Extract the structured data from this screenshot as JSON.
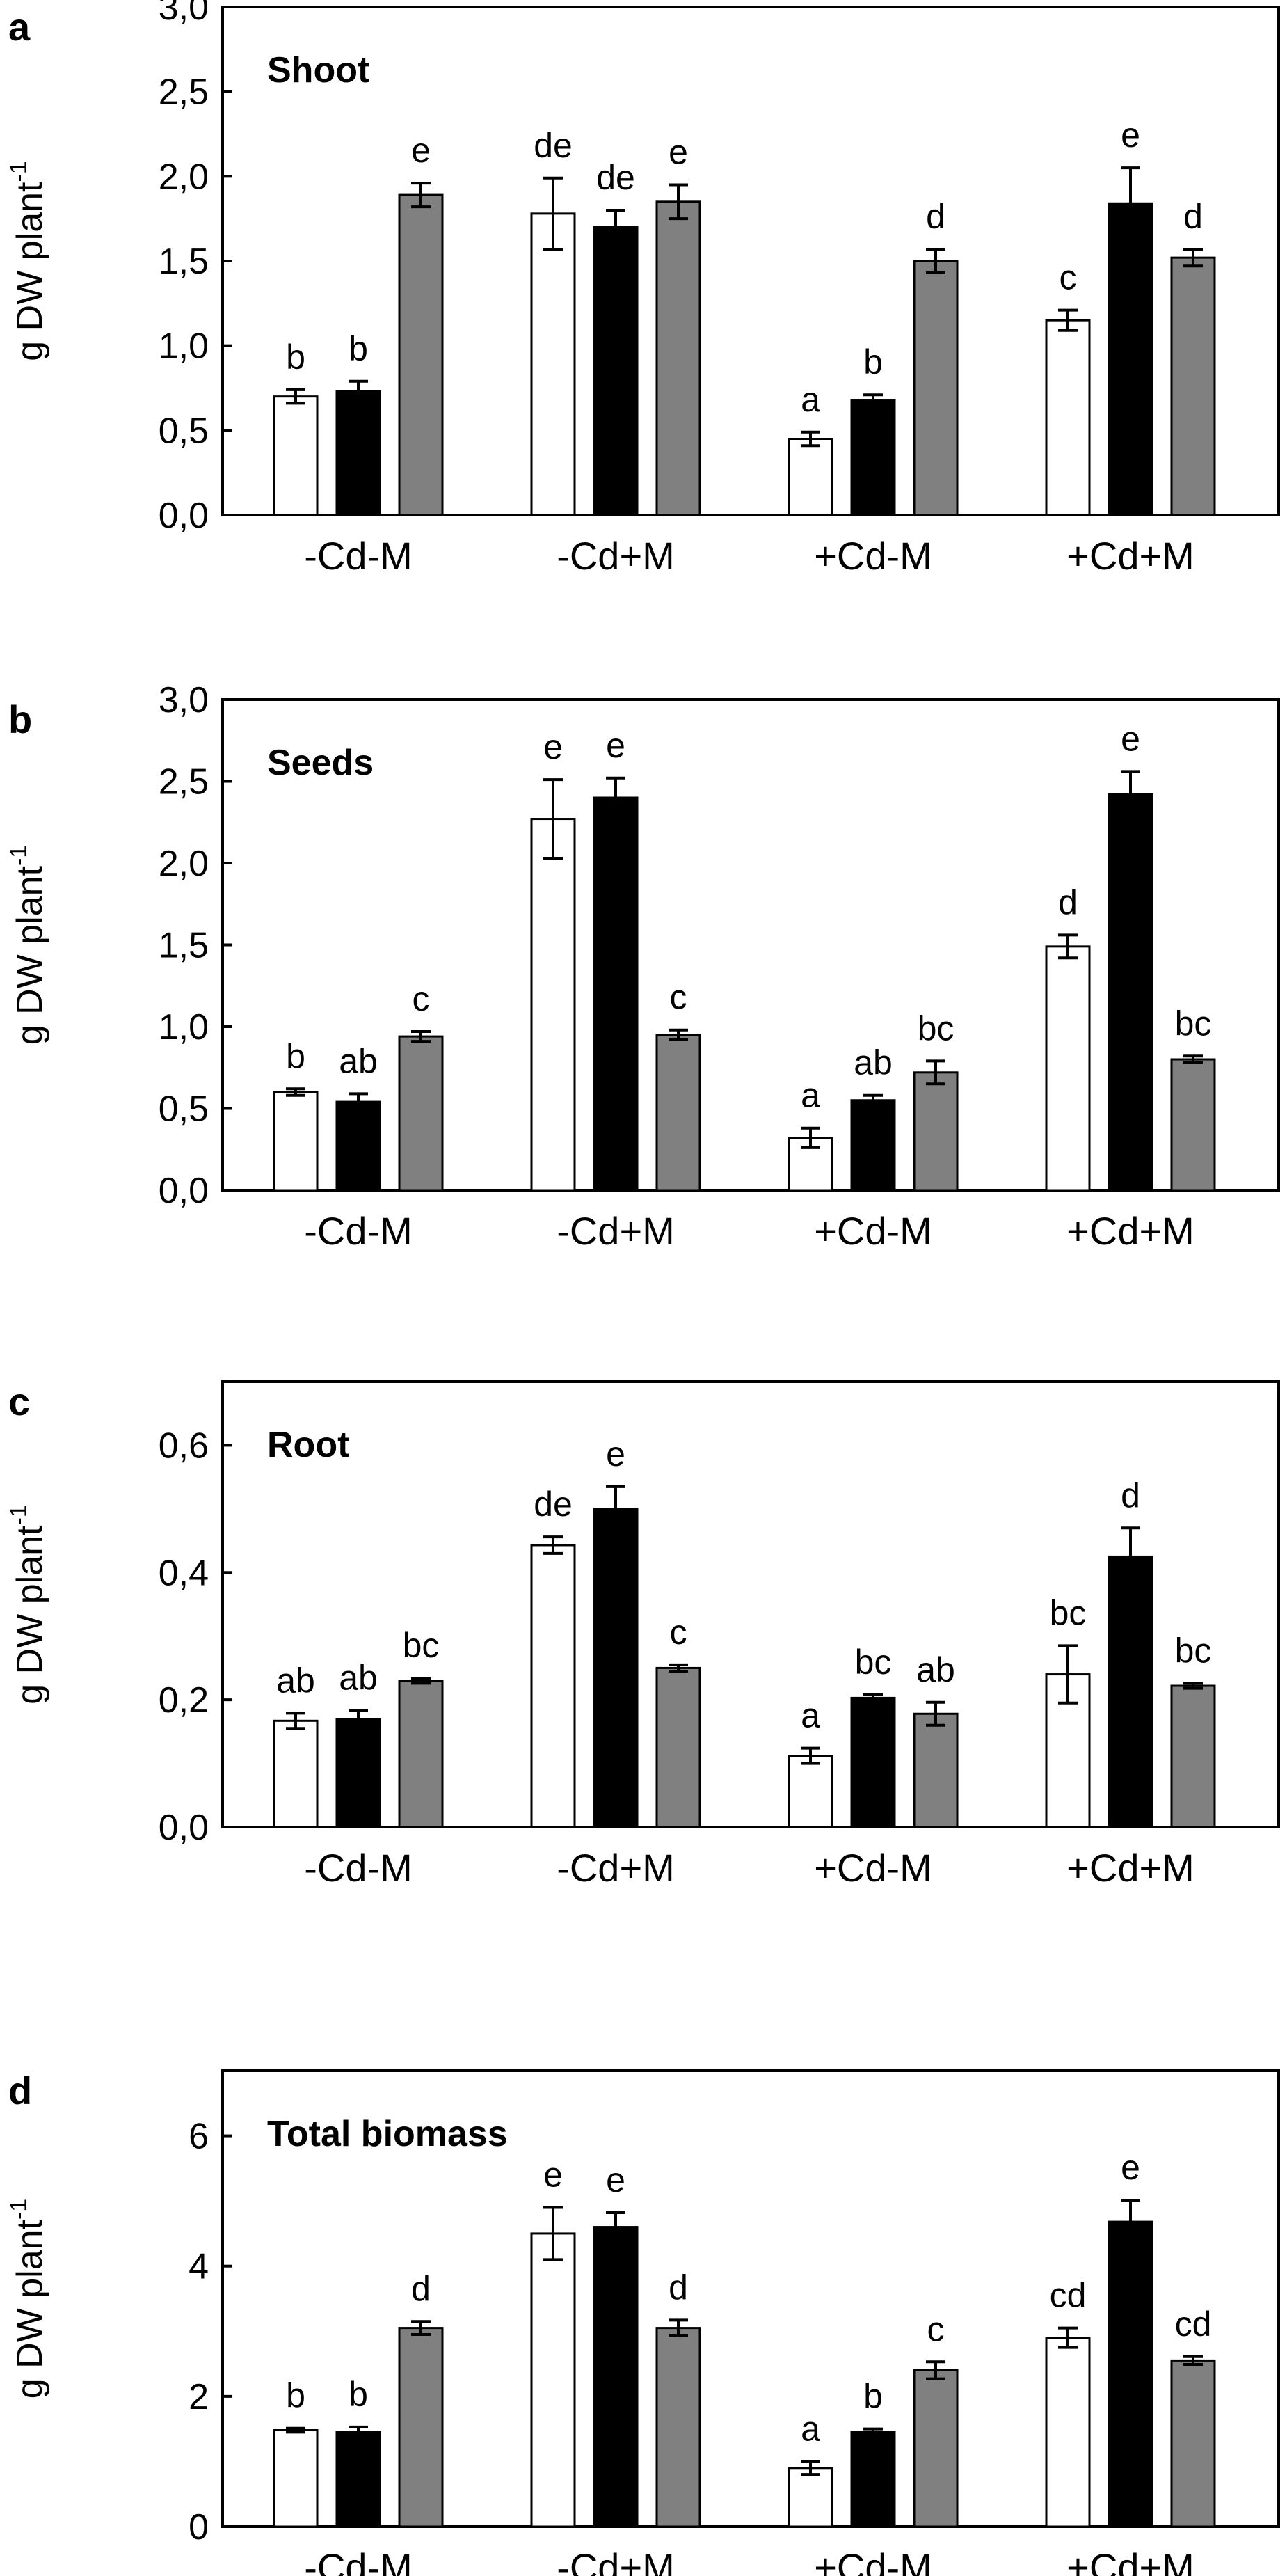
{
  "chart_data": [
    {
      "type": "bar",
      "panel": "a",
      "title": "Shoot",
      "ylabel": "g DW plant",
      "ylabel_superscript": "-1",
      "xlabel": "",
      "categories": [
        "-Cd-M",
        "-Cd+M",
        "+Cd-M",
        "+Cd+M"
      ],
      "ylim": [
        0,
        3.0
      ],
      "yticks": [
        "0,0",
        "0,5",
        "1,0",
        "1,5",
        "2,0",
        "2,5",
        "3,0"
      ],
      "series": [
        {
          "name": "white",
          "color": "#ffffff",
          "values": [
            0.7,
            1.78,
            0.45,
            1.15
          ],
          "errors": [
            0.04,
            0.21,
            0.04,
            0.06
          ],
          "labels": [
            "b",
            "de",
            "a",
            "c"
          ]
        },
        {
          "name": "black",
          "color": "#000000",
          "values": [
            0.73,
            1.7,
            0.68,
            1.84
          ],
          "errors": [
            0.06,
            0.1,
            0.03,
            0.21
          ],
          "labels": [
            "b",
            "de",
            "b",
            "e"
          ]
        },
        {
          "name": "grey",
          "color": "#808080",
          "values": [
            1.89,
            1.85,
            1.5,
            1.52
          ],
          "errors": [
            0.07,
            0.1,
            0.07,
            0.05
          ],
          "labels": [
            "e",
            "e",
            "d",
            "d"
          ]
        }
      ]
    },
    {
      "type": "bar",
      "panel": "b",
      "title": "Seeds",
      "ylabel": "g DW plant",
      "ylabel_superscript": "-1",
      "xlabel": "",
      "categories": [
        "-Cd-M",
        "-Cd+M",
        "+Cd-M",
        "+Cd+M"
      ],
      "ylim": [
        0,
        3.0
      ],
      "yticks": [
        "0,0",
        "0,5",
        "1,0",
        "1,5",
        "2,0",
        "2,5",
        "3,0"
      ],
      "series": [
        {
          "name": "white",
          "color": "#ffffff",
          "values": [
            0.6,
            2.27,
            0.32,
            1.49
          ],
          "errors": [
            0.02,
            0.24,
            0.06,
            0.07
          ],
          "labels": [
            "b",
            "e",
            "a",
            "d"
          ]
        },
        {
          "name": "black",
          "color": "#000000",
          "values": [
            0.54,
            2.4,
            0.55,
            2.42
          ],
          "errors": [
            0.05,
            0.12,
            0.03,
            0.14
          ],
          "labels": [
            "ab",
            "e",
            "ab",
            "e"
          ]
        },
        {
          "name": "grey",
          "color": "#808080",
          "values": [
            0.94,
            0.95,
            0.72,
            0.8
          ],
          "errors": [
            0.03,
            0.03,
            0.07,
            0.02
          ],
          "labels": [
            "c",
            "c",
            "bc",
            "bc"
          ]
        }
      ]
    },
    {
      "type": "bar",
      "panel": "c",
      "title": "Root",
      "ylabel": "g DW plant",
      "ylabel_superscript": "-1",
      "xlabel": "",
      "categories": [
        "-Cd-M",
        "-Cd+M",
        "+Cd-M",
        "+Cd+M"
      ],
      "ylim": [
        0,
        0.7
      ],
      "yticks": [
        "0,0",
        "0,2",
        "0,4",
        "0,6"
      ],
      "series": [
        {
          "name": "white",
          "color": "#ffffff",
          "values": [
            0.167,
            0.443,
            0.112,
            0.24
          ],
          "errors": [
            0.012,
            0.013,
            0.012,
            0.045
          ],
          "labels": [
            "ab",
            "de",
            "a",
            "bc"
          ]
        },
        {
          "name": "black",
          "color": "#000000",
          "values": [
            0.17,
            0.5,
            0.203,
            0.425
          ],
          "errors": [
            0.013,
            0.035,
            0.005,
            0.045
          ],
          "labels": [
            "ab",
            "e",
            "bc",
            "d"
          ]
        },
        {
          "name": "grey",
          "color": "#808080",
          "values": [
            0.23,
            0.25,
            0.178,
            0.222
          ],
          "errors": [
            0.004,
            0.005,
            0.018,
            0.004
          ],
          "labels": [
            "bc",
            "c",
            "ab",
            "bc"
          ]
        }
      ]
    },
    {
      "type": "bar",
      "panel": "d",
      "title": "Total biomass",
      "ylabel": "g DW plant",
      "ylabel_superscript": "-1",
      "xlabel": "",
      "categories": [
        "-Cd-M",
        "-Cd+M",
        "+Cd-M",
        "+Cd+M"
      ],
      "ylim": [
        0,
        7
      ],
      "yticks": [
        "0",
        "2",
        "4",
        "6"
      ],
      "series": [
        {
          "name": "white",
          "color": "#ffffff",
          "values": [
            1.48,
            4.5,
            0.9,
            2.9
          ],
          "errors": [
            0.03,
            0.4,
            0.1,
            0.15
          ],
          "labels": [
            "b",
            "e",
            "a",
            "cd"
          ]
        },
        {
          "name": "black",
          "color": "#000000",
          "values": [
            1.45,
            4.6,
            1.45,
            4.68
          ],
          "errors": [
            0.08,
            0.22,
            0.05,
            0.33
          ],
          "labels": [
            "b",
            "e",
            "b",
            "e"
          ]
        },
        {
          "name": "grey",
          "color": "#808080",
          "values": [
            3.05,
            3.05,
            2.4,
            2.55
          ],
          "errors": [
            0.1,
            0.12,
            0.13,
            0.06
          ],
          "labels": [
            "d",
            "d",
            "c",
            "cd"
          ]
        }
      ]
    }
  ]
}
